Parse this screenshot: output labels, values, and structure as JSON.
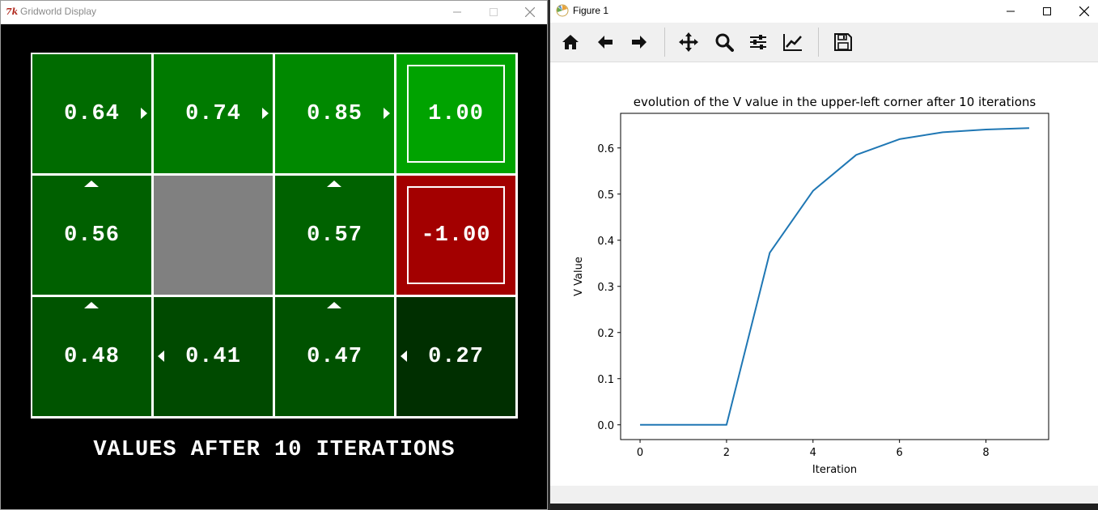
{
  "gridworld_window": {
    "title": "Gridworld Display",
    "logo_text": "7k",
    "caption": "VALUES AFTER 10 ITERATIONS",
    "cells": [
      {
        "row": 0,
        "col": 0,
        "value": "0.64",
        "color": "#006b00",
        "arrow": "right",
        "terminal": false,
        "wall": false
      },
      {
        "row": 0,
        "col": 1,
        "value": "0.74",
        "color": "#007a00",
        "arrow": "right",
        "terminal": false,
        "wall": false
      },
      {
        "row": 0,
        "col": 2,
        "value": "0.85",
        "color": "#008900",
        "arrow": "right",
        "terminal": false,
        "wall": false
      },
      {
        "row": 0,
        "col": 3,
        "value": "1.00",
        "color": "#00a300",
        "arrow": "none",
        "terminal": true,
        "wall": false
      },
      {
        "row": 1,
        "col": 0,
        "value": "0.56",
        "color": "#006000",
        "arrow": "up",
        "terminal": false,
        "wall": false
      },
      {
        "row": 1,
        "col": 1,
        "value": "",
        "color": "#808080",
        "arrow": "none",
        "terminal": false,
        "wall": true
      },
      {
        "row": 1,
        "col": 2,
        "value": "0.57",
        "color": "#006200",
        "arrow": "up",
        "terminal": false,
        "wall": false
      },
      {
        "row": 1,
        "col": 3,
        "value": "-1.00",
        "color": "#a30000",
        "arrow": "none",
        "terminal": true,
        "wall": false
      },
      {
        "row": 2,
        "col": 0,
        "value": "0.48",
        "color": "#005400",
        "arrow": "up",
        "terminal": false,
        "wall": false
      },
      {
        "row": 2,
        "col": 1,
        "value": "0.41",
        "color": "#004a00",
        "arrow": "left",
        "terminal": false,
        "wall": false
      },
      {
        "row": 2,
        "col": 2,
        "value": "0.47",
        "color": "#005200",
        "arrow": "up",
        "terminal": false,
        "wall": false
      },
      {
        "row": 2,
        "col": 3,
        "value": "0.27",
        "color": "#002f00",
        "arrow": "left",
        "terminal": false,
        "wall": false
      }
    ]
  },
  "figure_window": {
    "title": "Figure 1",
    "toolbar": {
      "home": "home-icon",
      "back": "back-arrow-icon",
      "forward": "forward-arrow-icon",
      "pan": "pan-move-icon",
      "zoom": "zoom-magnifier-icon",
      "subplots": "configure-subplots-icon",
      "axes": "edit-axes-curve-icon",
      "save": "save-floppy-icon"
    }
  },
  "chart_data": {
    "type": "line",
    "title": "evolution of the V value in the upper-left corner after 10 iterations",
    "xlabel": "Iteration",
    "ylabel": "V Value",
    "x": [
      0,
      1,
      2,
      3,
      4,
      5,
      6,
      7,
      8,
      9
    ],
    "series": [
      {
        "values": [
          0.0,
          0.0,
          0.0,
          0.373,
          0.507,
          0.585,
          0.619,
          0.634,
          0.64,
          0.643
        ],
        "color": "#1f77b4"
      }
    ],
    "xlim": [
      -0.45,
      9.45
    ],
    "ylim": [
      -0.032,
      0.675
    ],
    "xticks": [
      0,
      2,
      4,
      6,
      8
    ],
    "yticks": [
      0.0,
      0.1,
      0.2,
      0.3,
      0.4,
      0.5,
      0.6
    ],
    "ytick_labels": [
      "0.0",
      "0.1",
      "0.2",
      "0.3",
      "0.4",
      "0.5",
      "0.6"
    ],
    "grid": false,
    "legend": "none"
  }
}
